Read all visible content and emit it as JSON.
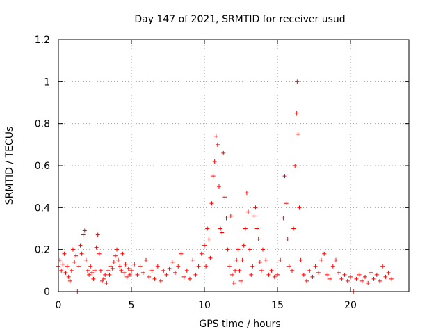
{
  "chart_data": {
    "type": "scatter",
    "title": "Day 147 of 2021, SRMTID for receiver usud",
    "xlabel": "GPS time / hours",
    "ylabel": "SRMTID / TECUs",
    "xlim": [
      0,
      24
    ],
    "ylim": [
      0,
      1.2
    ],
    "x_ticks": [
      0,
      5,
      10,
      15,
      20
    ],
    "x_tick_labels": [
      "0",
      "5",
      "10",
      "15",
      "20"
    ],
    "y_ticks": [
      0,
      0.2,
      0.4,
      0.6,
      0.8,
      1.0,
      1.2
    ],
    "y_tick_labels": [
      "0",
      "0.2",
      "0.4",
      "0.6",
      "0.8",
      "1",
      "1.2"
    ],
    "grid": true,
    "marker": "+",
    "color": "#ff0000",
    "series": [
      {
        "name": "SRMTID",
        "points": [
          [
            0.0,
            0.12
          ],
          [
            0.1,
            0.15
          ],
          [
            0.2,
            0.1
          ],
          [
            0.3,
            0.13
          ],
          [
            0.4,
            0.18
          ],
          [
            0.5,
            0.09
          ],
          [
            0.6,
            0.12
          ],
          [
            0.7,
            0.07
          ],
          [
            0.8,
            0.05
          ],
          [
            0.9,
            0.1
          ],
          [
            1.0,
            0.2
          ],
          [
            1.1,
            0.14
          ],
          [
            1.2,
            0.17
          ],
          [
            1.3,
            0.0
          ],
          [
            1.4,
            0.12
          ],
          [
            1.5,
            0.22
          ],
          [
            1.6,
            0.18
          ],
          [
            1.7,
            0.27
          ],
          [
            1.8,
            0.29
          ],
          [
            1.9,
            0.15
          ],
          [
            2.0,
            0.1
          ],
          [
            2.1,
            0.08
          ],
          [
            2.2,
            0.12
          ],
          [
            2.3,
            0.09
          ],
          [
            2.4,
            0.06
          ],
          [
            2.5,
            0.1
          ],
          [
            2.6,
            0.21
          ],
          [
            2.7,
            0.27
          ],
          [
            2.8,
            0.18
          ],
          [
            2.9,
            0.1
          ],
          [
            3.0,
            0.05
          ],
          [
            3.1,
            0.06
          ],
          [
            3.2,
            0.08
          ],
          [
            3.3,
            0.04
          ],
          [
            3.4,
            0.1
          ],
          [
            3.5,
            0.08
          ],
          [
            3.6,
            0.12
          ],
          [
            3.7,
            0.11
          ],
          [
            3.8,
            0.14
          ],
          [
            3.9,
            0.17
          ],
          [
            4.0,
            0.2
          ],
          [
            4.1,
            0.15
          ],
          [
            4.2,
            0.12
          ],
          [
            4.3,
            0.1
          ],
          [
            4.4,
            0.18
          ],
          [
            4.5,
            0.09
          ],
          [
            4.6,
            0.13
          ],
          [
            4.7,
            0.07
          ],
          [
            4.8,
            0.11
          ],
          [
            4.9,
            0.08
          ],
          [
            5.0,
            0.1
          ],
          [
            5.2,
            0.13
          ],
          [
            5.4,
            0.08
          ],
          [
            5.6,
            0.12
          ],
          [
            5.8,
            0.09
          ],
          [
            6.0,
            0.15
          ],
          [
            6.2,
            0.07
          ],
          [
            6.4,
            0.1
          ],
          [
            6.6,
            0.06
          ],
          [
            6.8,
            0.12
          ],
          [
            7.0,
            0.05
          ],
          [
            7.2,
            0.1
          ],
          [
            7.4,
            0.08
          ],
          [
            7.6,
            0.11
          ],
          [
            7.8,
            0.14
          ],
          [
            8.0,
            0.09
          ],
          [
            8.2,
            0.12
          ],
          [
            8.4,
            0.18
          ],
          [
            8.6,
            0.07
          ],
          [
            8.8,
            0.1
          ],
          [
            9.0,
            0.06
          ],
          [
            9.2,
            0.15
          ],
          [
            9.4,
            0.08
          ],
          [
            9.6,
            0.12
          ],
          [
            9.8,
            0.18
          ],
          [
            10.0,
            0.22
          ],
          [
            10.1,
            0.12
          ],
          [
            10.2,
            0.3
          ],
          [
            10.3,
            0.25
          ],
          [
            10.4,
            0.16
          ],
          [
            10.5,
            0.42
          ],
          [
            10.6,
            0.55
          ],
          [
            10.7,
            0.62
          ],
          [
            10.8,
            0.74
          ],
          [
            10.9,
            0.7
          ],
          [
            11.0,
            0.5
          ],
          [
            11.1,
            0.3
          ],
          [
            11.2,
            0.28
          ],
          [
            11.3,
            0.66
          ],
          [
            11.4,
            0.45
          ],
          [
            11.5,
            0.35
          ],
          [
            11.6,
            0.2
          ],
          [
            11.7,
            0.12
          ],
          [
            11.8,
            0.36
          ],
          [
            11.9,
            0.08
          ],
          [
            12.0,
            0.04
          ],
          [
            12.1,
            0.1
          ],
          [
            12.2,
            0.15
          ],
          [
            12.3,
            0.2
          ],
          [
            12.4,
            0.1
          ],
          [
            12.5,
            0.05
          ],
          [
            12.6,
            0.15
          ],
          [
            12.7,
            0.22
          ],
          [
            12.8,
            0.3
          ],
          [
            12.9,
            0.47
          ],
          [
            13.0,
            0.38
          ],
          [
            13.1,
            0.2
          ],
          [
            13.2,
            0.08
          ],
          [
            13.3,
            0.12
          ],
          [
            13.4,
            0.36
          ],
          [
            13.5,
            0.4
          ],
          [
            13.6,
            0.3
          ],
          [
            13.7,
            0.25
          ],
          [
            13.8,
            0.14
          ],
          [
            13.9,
            0.1
          ],
          [
            14.0,
            0.2
          ],
          [
            14.2,
            0.15
          ],
          [
            14.4,
            0.08
          ],
          [
            14.6,
            0.1
          ],
          [
            14.8,
            0.07
          ],
          [
            15.0,
            0.08
          ],
          [
            15.2,
            0.15
          ],
          [
            15.4,
            0.35
          ],
          [
            15.5,
            0.55
          ],
          [
            15.6,
            0.42
          ],
          [
            15.7,
            0.25
          ],
          [
            15.8,
            0.12
          ],
          [
            16.0,
            0.1
          ],
          [
            16.1,
            0.3
          ],
          [
            16.2,
            0.6
          ],
          [
            16.3,
            0.85
          ],
          [
            16.35,
            1.0
          ],
          [
            16.4,
            0.75
          ],
          [
            16.5,
            0.4
          ],
          [
            16.6,
            0.15
          ],
          [
            16.8,
            0.08
          ],
          [
            17.0,
            0.05
          ],
          [
            17.2,
            0.1
          ],
          [
            17.4,
            0.07
          ],
          [
            17.6,
            0.12
          ],
          [
            17.8,
            0.09
          ],
          [
            18.0,
            0.15
          ],
          [
            18.2,
            0.18
          ],
          [
            18.4,
            0.08
          ],
          [
            18.6,
            0.06
          ],
          [
            18.8,
            0.12
          ],
          [
            19.0,
            0.15
          ],
          [
            19.2,
            0.09
          ],
          [
            19.4,
            0.06
          ],
          [
            19.6,
            0.08
          ],
          [
            19.8,
            0.05
          ],
          [
            20.0,
            0.07
          ],
          [
            20.2,
            0.0
          ],
          [
            20.4,
            0.06
          ],
          [
            20.6,
            0.08
          ],
          [
            20.8,
            0.05
          ],
          [
            21.0,
            0.07
          ],
          [
            21.2,
            0.04
          ],
          [
            21.4,
            0.09
          ],
          [
            21.6,
            0.06
          ],
          [
            21.8,
            0.08
          ],
          [
            22.0,
            0.05
          ],
          [
            22.2,
            0.12
          ],
          [
            22.4,
            0.07
          ],
          [
            22.6,
            0.09
          ],
          [
            22.8,
            0.06
          ]
        ]
      }
    ]
  }
}
